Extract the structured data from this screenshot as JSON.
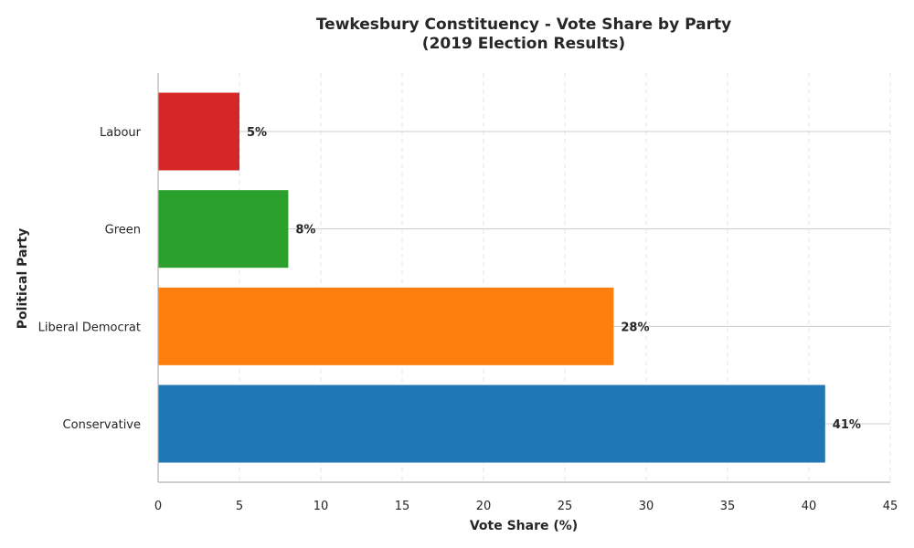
{
  "chart_data": {
    "type": "bar",
    "orientation": "horizontal",
    "title_line1": "Tewkesbury Constituency - Vote Share by Party",
    "title_line2": "(2019 Election Results)",
    "xlabel": "Vote Share (%)",
    "ylabel": "Political Party",
    "categories": [
      "Conservative",
      "Liberal Democrat",
      "Green",
      "Labour"
    ],
    "values": [
      41,
      28,
      8,
      5
    ],
    "data_labels": [
      "41%",
      "28%",
      "8%",
      "5%"
    ],
    "colors": [
      "#1f77b4",
      "#ff7f0e",
      "#2ca02c",
      "#d62728"
    ],
    "xlim": [
      0,
      45
    ],
    "xticks": [
      0,
      5,
      10,
      15,
      20,
      25,
      30,
      35,
      40,
      45
    ],
    "xtick_labels": [
      "0",
      "5",
      "10",
      "15",
      "20",
      "25",
      "30",
      "35",
      "40",
      "45"
    ],
    "grid": {
      "x": "dashed",
      "y": "solid"
    }
  }
}
